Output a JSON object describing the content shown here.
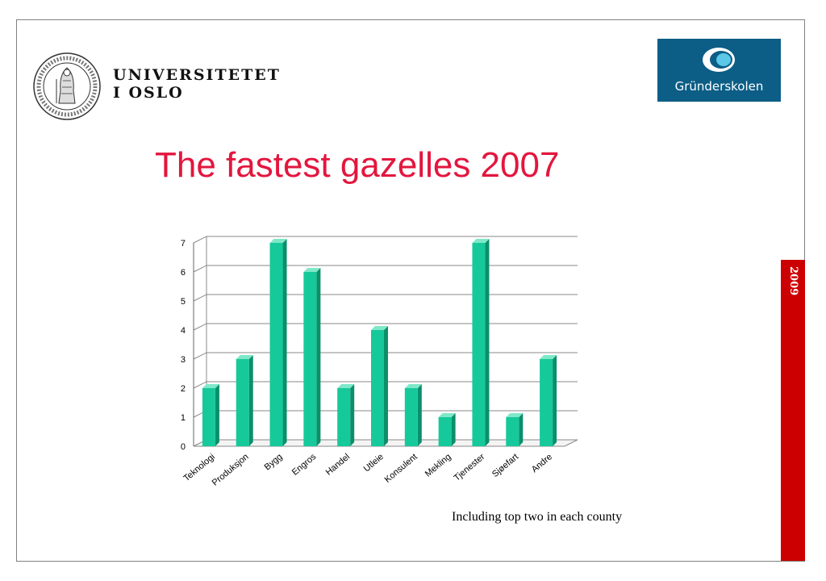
{
  "header": {
    "university_name_line1": "UNIVERSITETET",
    "university_name_line2": "I OSLO",
    "partner_logo_text": "Gründerskolen"
  },
  "side_label": "2009",
  "footnote": "Including top two in each county",
  "colors": {
    "title": "#e3163e",
    "bar_front": "#16c99a",
    "bar_side": "#0b8f6b",
    "bar_top": "#7fe8c8",
    "side_bar": "#cc0000",
    "partner_logo_bg": "#0c5e86"
  },
  "chart_data": {
    "type": "bar",
    "title": "The fastest gazelles 2007",
    "xlabel": "",
    "ylabel": "",
    "categories": [
      "Teknologi",
      "Produksjon",
      "Bygg",
      "Engros",
      "Handel",
      "Utleie",
      "Konsulent",
      "Mekling",
      "Tjenester",
      "Sjøefart",
      "Andre"
    ],
    "values": [
      2,
      3,
      7,
      6,
      2,
      4,
      2,
      1,
      7,
      1,
      3
    ],
    "yticks": [
      "0",
      "1",
      "2",
      "3",
      "4",
      "5",
      "6",
      "7"
    ],
    "ylim": [
      0,
      7
    ],
    "grid": true,
    "style": "3d"
  }
}
